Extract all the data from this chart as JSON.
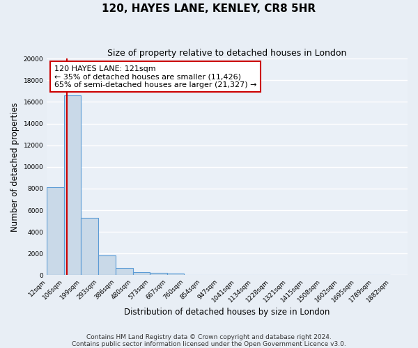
{
  "title": "120, HAYES LANE, KENLEY, CR8 5HR",
  "subtitle": "Size of property relative to detached houses in London",
  "xlabel": "Distribution of detached houses by size in London",
  "ylabel": "Number of detached properties",
  "bin_labels": [
    "12sqm",
    "106sqm",
    "199sqm",
    "293sqm",
    "386sqm",
    "480sqm",
    "573sqm",
    "667sqm",
    "760sqm",
    "854sqm",
    "947sqm",
    "1041sqm",
    "1134sqm",
    "1228sqm",
    "1321sqm",
    "1415sqm",
    "1508sqm",
    "1602sqm",
    "1695sqm",
    "1789sqm",
    "1882sqm"
  ],
  "bar_values": [
    8150,
    16600,
    5300,
    1800,
    700,
    300,
    200,
    150,
    0,
    0,
    0,
    0,
    0,
    0,
    0,
    0,
    0,
    0,
    0,
    0
  ],
  "bar_color": "#c9d9e8",
  "bar_edge_color": "#5b9bd5",
  "ylim": [
    0,
    20000
  ],
  "yticks": [
    0,
    2000,
    4000,
    6000,
    8000,
    10000,
    12000,
    14000,
    16000,
    18000,
    20000
  ],
  "property_line_color": "#cc0000",
  "property_line_x": 121,
  "annotation_title": "120 HAYES LANE: 121sqm",
  "annotation_line1": "← 35% of detached houses are smaller (11,426)",
  "annotation_line2": "65% of semi-detached houses are larger (21,327) →",
  "annotation_box_color": "#ffffff",
  "annotation_box_edge": "#cc0000",
  "bin_edges": [
    12,
    106,
    199,
    293,
    386,
    480,
    573,
    667,
    760,
    854,
    947,
    1041,
    1134,
    1228,
    1321,
    1415,
    1508,
    1602,
    1695,
    1789,
    1882
  ],
  "footer_line1": "Contains HM Land Registry data © Crown copyright and database right 2024.",
  "footer_line2": "Contains public sector information licensed under the Open Government Licence v3.0.",
  "background_color": "#e8eef5",
  "plot_bg_color": "#eaf0f7",
  "grid_color": "#ffffff",
  "title_fontsize": 11,
  "subtitle_fontsize": 9,
  "tick_fontsize": 6.5,
  "axis_label_fontsize": 8.5,
  "footer_fontsize": 6.5,
  "annot_fontsize": 8
}
